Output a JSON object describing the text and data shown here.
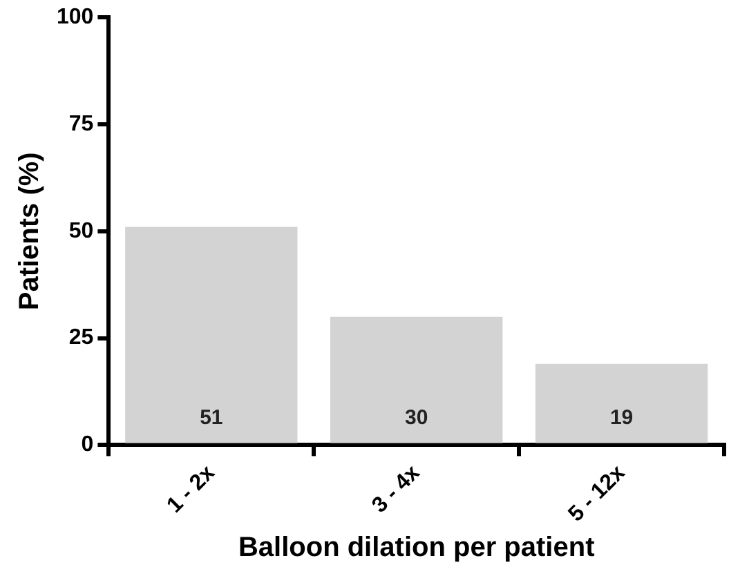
{
  "chart_data": {
    "type": "bar",
    "xlabel": "Balloon dilation per patient",
    "ylabel": "Patients (%)",
    "categories": [
      "1 - 2x",
      "3 - 4x",
      "5 - 12x"
    ],
    "values": [
      51,
      30,
      19
    ],
    "color": "#d3d3d3",
    "ylim": [
      0,
      100
    ],
    "yticks": [
      0,
      25,
      50,
      75,
      100
    ],
    "grid": false,
    "data_labels": true
  }
}
